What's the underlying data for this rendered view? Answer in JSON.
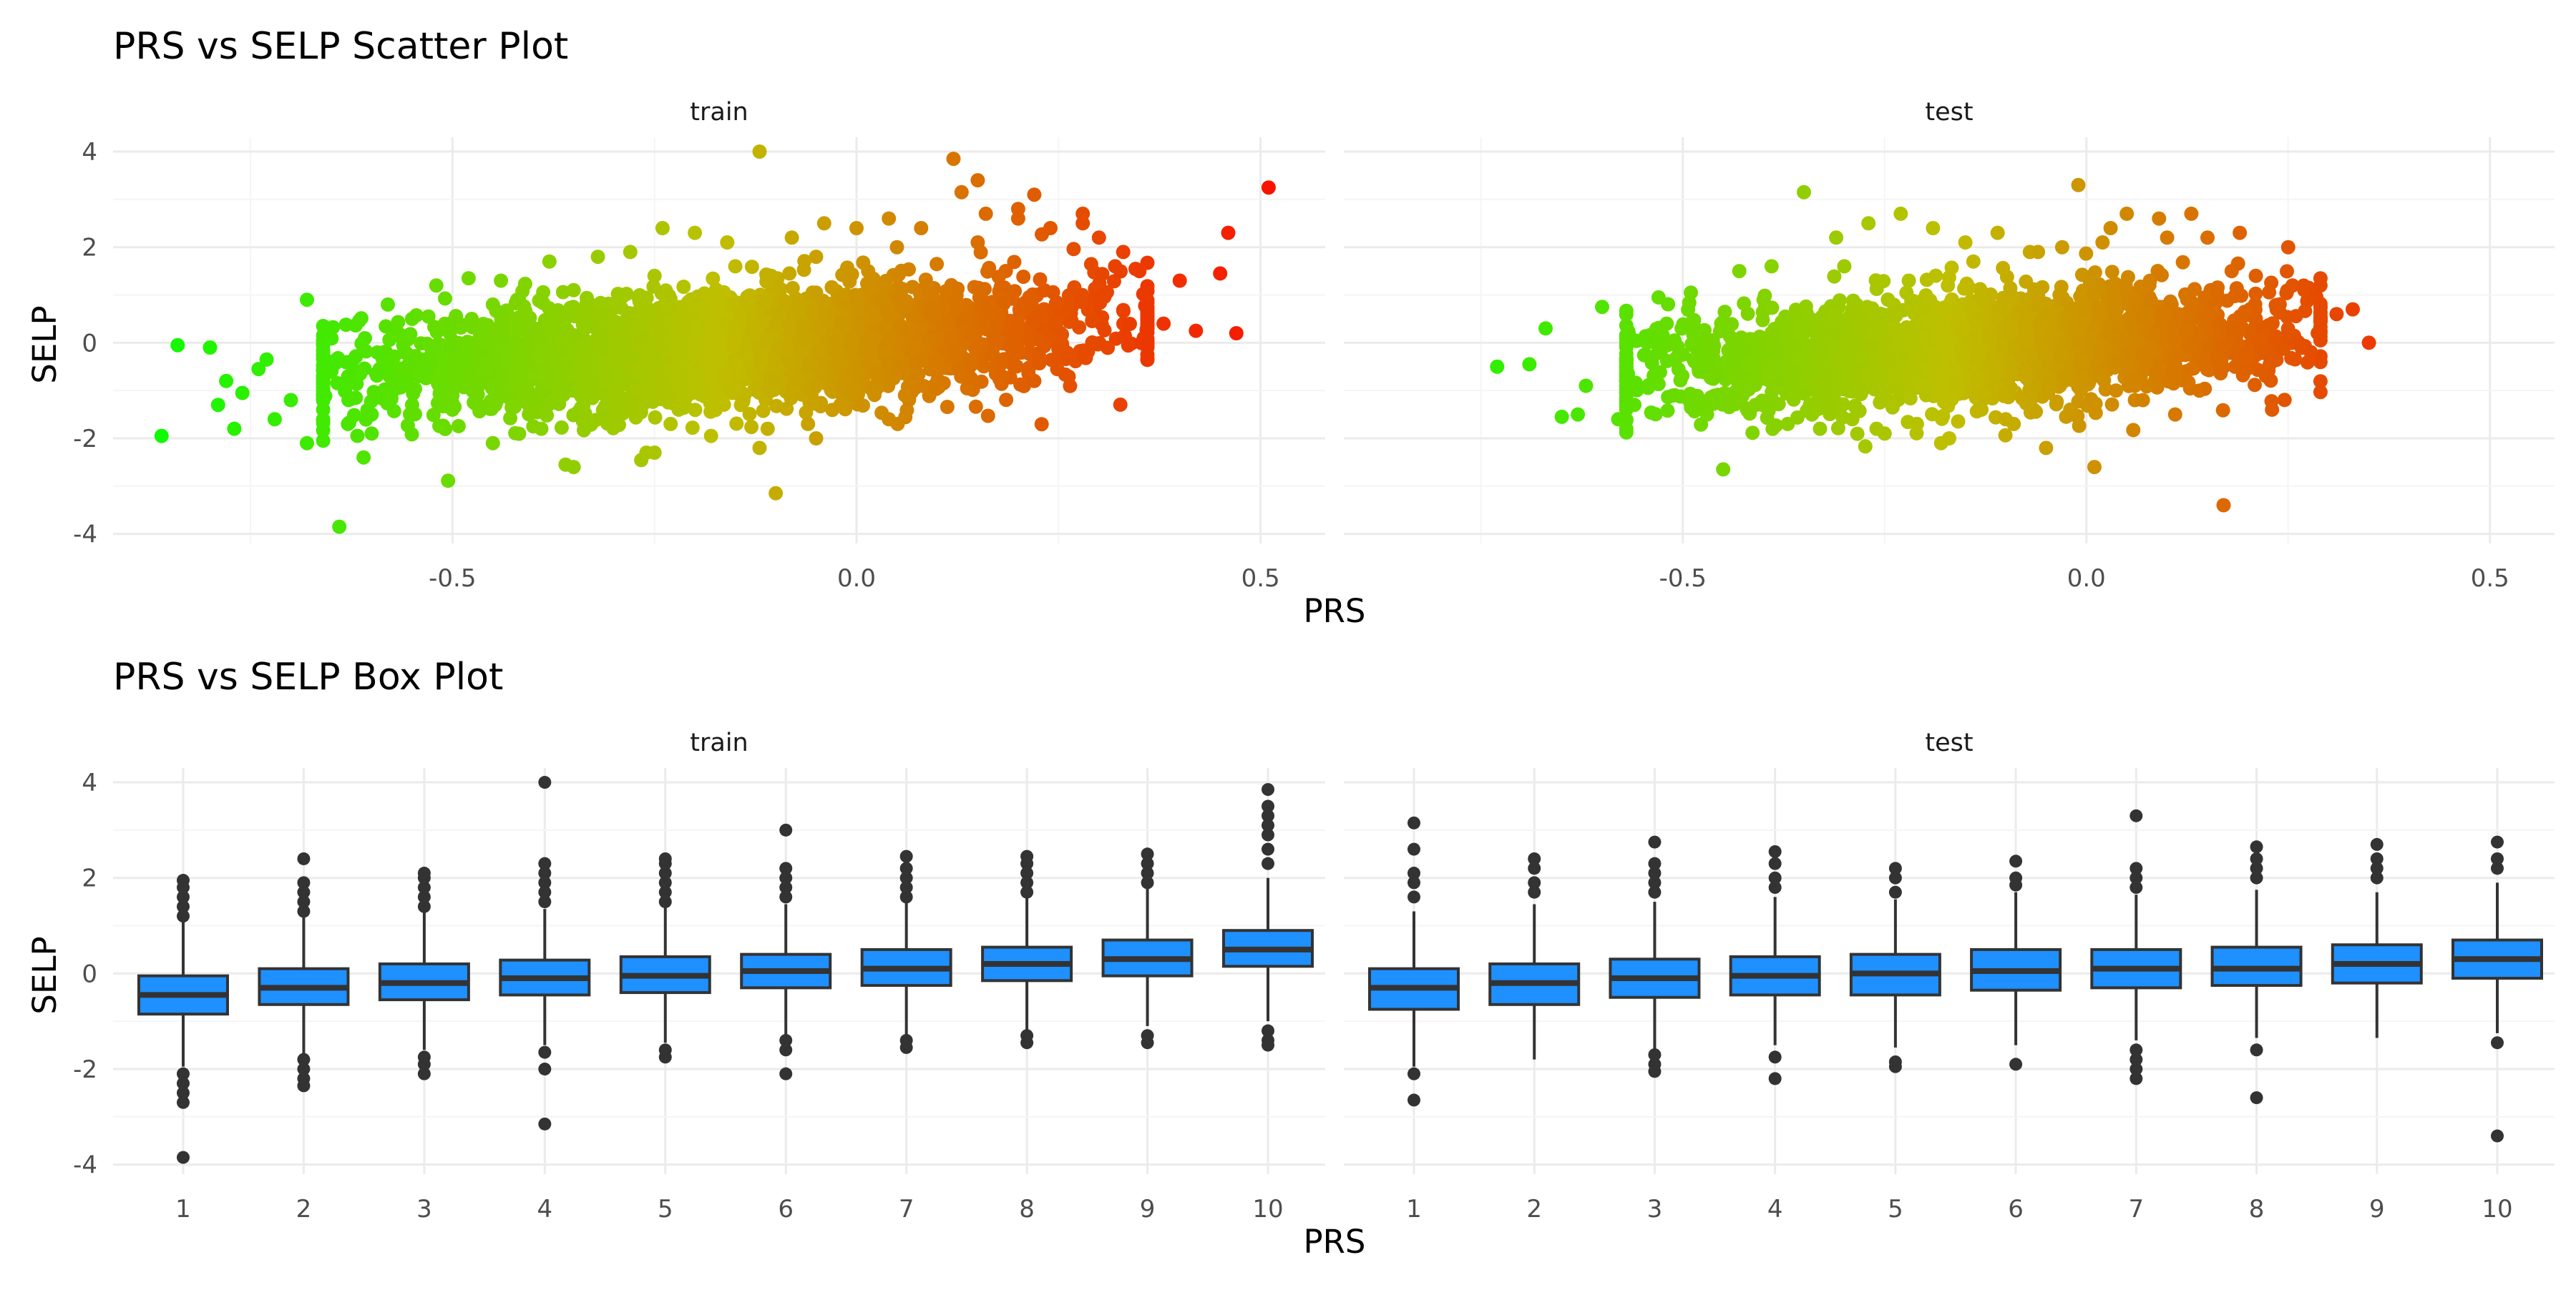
{
  "palette": {
    "background": "#ffffff",
    "grid_major": "#ebebeb",
    "grid_minor": "#f5f5f5",
    "box_fill": "#1e90ff",
    "box_line": "#333333",
    "outlier": "#333333",
    "gradient_low": "#00ff00",
    "gradient_high": "#ff0000"
  },
  "chart_data": [
    {
      "type": "scatter",
      "title": "PRS vs SELP Scatter Plot",
      "xlabel": "PRS",
      "ylabel": "SELP",
      "facets": [
        "train",
        "test"
      ],
      "xlim": [
        -0.92,
        0.58
      ],
      "ylim": [
        -4.2,
        4.3
      ],
      "xticks": [
        -0.5,
        0.0,
        0.5
      ],
      "xtick_labels": [
        "-0.5",
        "0.0",
        "0.5"
      ],
      "yticks": [
        -4,
        -2,
        0,
        2,
        4
      ],
      "ytick_labels": [
        "-4",
        "-2",
        "0",
        "2",
        "4"
      ],
      "color_encoding": "PRS (green at low, red at high)",
      "grid": true,
      "legend": "none",
      "series": [
        {
          "facet": "train",
          "x": [
            -0.86,
            -0.84,
            -0.8,
            -0.79,
            -0.78,
            -0.77,
            -0.76,
            -0.74,
            -0.72,
            -0.7,
            -0.68,
            -0.66,
            -0.64,
            -0.62,
            -0.6,
            -0.58,
            -0.56,
            -0.55,
            -0.52,
            -0.5,
            -0.48,
            -0.46,
            -0.44,
            -0.42,
            -0.4,
            -0.38,
            -0.36,
            -0.34,
            -0.32,
            -0.3,
            -0.28,
            -0.26,
            -0.24,
            -0.22,
            -0.2,
            -0.18,
            -0.16,
            -0.14,
            -0.12,
            -0.1,
            -0.08,
            -0.06,
            -0.04,
            -0.02,
            0.0,
            0.02,
            0.04,
            0.06,
            0.08,
            0.1,
            0.12,
            0.14,
            0.16,
            0.18,
            0.2,
            0.22,
            0.24,
            0.26,
            0.28,
            0.3,
            0.32,
            0.35,
            0.38,
            0.4,
            0.42,
            0.45,
            0.46,
            0.47,
            0.51,
            -0.73,
            -0.68,
            -0.66,
            -0.61,
            -0.55,
            -0.45,
            -0.39,
            -0.35,
            -0.25,
            -0.23,
            -0.12,
            -0.11,
            -0.05,
            0.04,
            0.13,
            0.15,
            0.2,
            0.22,
            0.28,
            -0.6,
            -0.5,
            -0.4,
            -0.3,
            -0.2,
            -0.1,
            0.0,
            0.1,
            0.2,
            0.25,
            -0.55,
            -0.45,
            -0.35,
            -0.25,
            -0.15,
            -0.05,
            0.05,
            0.15,
            0.3,
            0.33
          ],
          "y": [
            -1.95,
            -0.05,
            -0.1,
            -1.3,
            -0.8,
            -1.8,
            -1.05,
            -0.55,
            -1.6,
            -1.2,
            0.9,
            -1.4,
            -3.85,
            -0.3,
            -1.9,
            0.8,
            -0.2,
            -1.5,
            1.2,
            -1.1,
            1.35,
            -0.6,
            1.3,
            0.9,
            -1.75,
            1.7,
            -2.55,
            0.5,
            1.8,
            -1.6,
            1.9,
            -2.3,
            2.4,
            -1.4,
            2.3,
            -1.95,
            2.1,
            -1.2,
            4.0,
            -3.15,
            2.2,
            -1.7,
            2.5,
            -1.3,
            2.4,
            -1.0,
            2.6,
            -1.1,
            2.4,
            -0.9,
            3.85,
            -0.5,
            2.7,
            -0.7,
            2.6,
            -0.8,
            2.4,
            -0.2,
            2.5,
            0.9,
            1.6,
            1.5,
            0.4,
            1.3,
            0.25,
            1.45,
            2.3,
            0.2,
            3.25,
            -0.35,
            -2.1,
            -2.05,
            -2.4,
            -1.3,
            -2.1,
            -1.8,
            -2.6,
            -2.3,
            -1.7,
            -2.2,
            -1.8,
            -2.0,
            -1.6,
            3.15,
            3.4,
            2.8,
            3.1,
            2.7,
            -1.5,
            -1.4,
            -1.2,
            -1.1,
            -1.0,
            -0.8,
            -0.6,
            -0.4,
            -0.2,
            -0.1,
            0.5,
            0.8,
            1.1,
            1.4,
            1.6,
            1.8,
            2.0,
            2.1,
            2.2,
            1.9
          ]
        },
        {
          "facet": "test",
          "x": [
            -0.73,
            -0.69,
            -0.67,
            -0.65,
            -0.63,
            -0.6,
            -0.58,
            -0.56,
            -0.53,
            -0.51,
            -0.49,
            -0.47,
            -0.45,
            -0.43,
            -0.41,
            -0.39,
            -0.37,
            -0.35,
            -0.33,
            -0.31,
            -0.29,
            -0.27,
            -0.25,
            -0.23,
            -0.21,
            -0.19,
            -0.17,
            -0.15,
            -0.13,
            -0.11,
            -0.09,
            -0.07,
            -0.05,
            -0.03,
            -0.01,
            0.01,
            0.03,
            0.05,
            0.07,
            0.09,
            0.11,
            0.13,
            0.15,
            0.17,
            0.19,
            0.21,
            0.23,
            0.25,
            0.27,
            0.29,
            0.31,
            0.33,
            0.35,
            -0.62,
            -0.57,
            -0.52,
            -0.48,
            -0.44,
            -0.4,
            -0.34,
            -0.3,
            -0.26,
            -0.22,
            -0.18,
            -0.14,
            -0.1,
            -0.06,
            -0.02,
            0.02,
            0.06,
            0.1,
            0.14,
            0.18,
            0.22
          ],
          "y": [
            -0.5,
            -0.45,
            0.3,
            -1.55,
            -1.5,
            0.75,
            -1.6,
            -1.3,
            0.95,
            -1.1,
            1.05,
            -1.5,
            -2.65,
            1.5,
            -1.3,
            1.6,
            -1.7,
            3.15,
            -1.8,
            2.2,
            -1.6,
            2.5,
            -1.9,
            2.7,
            -1.7,
            2.4,
            -2.0,
            2.1,
            -1.4,
            2.3,
            -1.7,
            1.9,
            -2.2,
            2.0,
            3.3,
            -2.6,
            2.4,
            2.7,
            -1.2,
            2.6,
            -1.5,
            2.7,
            2.2,
            -3.4,
            2.3,
            1.4,
            -1.4,
            2.0,
            1.1,
            1.2,
            0.6,
            0.7,
            0.0,
            -0.9,
            -1.2,
            0.4,
            -1.3,
            -1.1,
            0.9,
            -1.5,
            1.6,
            -1.8,
            1.3,
            -2.1,
            1.7,
            -1.6,
            1.9,
            -1.4,
            2.1,
            -0.9,
            2.2,
            -1.0,
            1.5,
            -0.6
          ]
        }
      ],
      "point_clouds": [
        {
          "facet": "train",
          "x_range": [
            -0.66,
            0.36
          ],
          "slope": 1.0,
          "intercept": 0.05,
          "sd": 0.58
        },
        {
          "facet": "test",
          "x_range": [
            -0.57,
            0.29
          ],
          "slope": 1.0,
          "intercept": 0.05,
          "sd": 0.55
        }
      ]
    },
    {
      "type": "box",
      "title": "PRS vs SELP Box Plot",
      "xlabel": "PRS",
      "ylabel": "SELP",
      "facets": [
        "train",
        "test"
      ],
      "categories": [
        "1",
        "2",
        "3",
        "4",
        "5",
        "6",
        "7",
        "8",
        "9",
        "10"
      ],
      "ylim": [
        -4.2,
        4.3
      ],
      "yticks": [
        -4,
        -2,
        0,
        2,
        4
      ],
      "ytick_labels": [
        "-4",
        "-2",
        "0",
        "2",
        "4"
      ],
      "grid": true,
      "legend": "none",
      "series": [
        {
          "facet": "train",
          "q1": [
            -0.85,
            -0.65,
            -0.55,
            -0.45,
            -0.4,
            -0.3,
            -0.25,
            -0.15,
            -0.05,
            0.15
          ],
          "median": [
            -0.45,
            -0.3,
            -0.2,
            -0.1,
            -0.05,
            0.05,
            0.1,
            0.2,
            0.3,
            0.5
          ],
          "q3": [
            -0.05,
            0.1,
            0.2,
            0.28,
            0.35,
            0.4,
            0.5,
            0.55,
            0.7,
            0.9
          ],
          "whisker_low": [
            -1.95,
            -1.75,
            -1.6,
            -1.5,
            -1.45,
            -1.35,
            -1.3,
            -1.2,
            -1.1,
            -1.0
          ],
          "whisker_high": [
            1.1,
            1.2,
            1.3,
            1.35,
            1.4,
            1.45,
            1.55,
            1.6,
            1.8,
            2.0
          ],
          "outliers": [
            [
              1.2,
              1.4,
              1.6,
              1.8,
              1.95,
              -2.1,
              -2.3,
              -2.5,
              -2.7,
              -3.85
            ],
            [
              2.4,
              1.3,
              1.5,
              1.7,
              1.9,
              -1.8,
              -2.0,
              -2.2,
              -2.35
            ],
            [
              1.4,
              1.6,
              1.8,
              2.0,
              2.1,
              -1.75,
              -1.9,
              -2.1
            ],
            [
              4.0,
              2.3,
              2.1,
              1.9,
              1.5,
              1.7,
              -1.65,
              -2.0,
              -3.15
            ],
            [
              1.5,
              1.7,
              1.9,
              2.1,
              2.3,
              2.4,
              -1.6,
              -1.75
            ],
            [
              3.0,
              2.2,
              2.0,
              1.8,
              1.6,
              -1.4,
              -1.6,
              -2.1
            ],
            [
              1.6,
              1.8,
              2.0,
              2.2,
              2.45,
              -1.4,
              -1.55
            ],
            [
              1.7,
              1.9,
              2.1,
              2.3,
              2.45,
              -1.3,
              -1.45
            ],
            [
              1.9,
              2.1,
              2.3,
              2.5,
              -1.3,
              -1.45
            ],
            [
              2.3,
              2.6,
              2.9,
              3.1,
              3.3,
              3.5,
              3.85,
              -1.2,
              -1.4,
              -1.5
            ]
          ]
        },
        {
          "facet": "test",
          "q1": [
            -0.75,
            -0.65,
            -0.5,
            -0.45,
            -0.45,
            -0.35,
            -0.3,
            -0.25,
            -0.2,
            -0.1
          ],
          "median": [
            -0.3,
            -0.2,
            -0.1,
            -0.05,
            0.0,
            0.05,
            0.1,
            0.1,
            0.2,
            0.3
          ],
          "q3": [
            0.1,
            0.2,
            0.3,
            0.35,
            0.4,
            0.5,
            0.5,
            0.55,
            0.6,
            0.7
          ],
          "whisker_low": [
            -1.95,
            -1.8,
            -1.6,
            -1.5,
            -1.55,
            -1.5,
            -1.4,
            -1.35,
            -1.35,
            -1.25
          ],
          "whisker_high": [
            1.3,
            1.45,
            1.5,
            1.6,
            1.55,
            1.7,
            1.65,
            1.75,
            1.7,
            1.9
          ],
          "outliers": [
            [
              3.15,
              2.6,
              2.1,
              1.9,
              1.6,
              -2.1,
              -2.65
            ],
            [
              2.4,
              2.2,
              1.9,
              1.7
            ],
            [
              2.75,
              2.3,
              2.1,
              1.9,
              1.7,
              -1.7,
              -1.9,
              -2.05
            ],
            [
              2.55,
              2.3,
              2.0,
              1.8,
              -1.75,
              -2.2
            ],
            [
              2.2,
              2.0,
              1.7,
              -1.85,
              -1.95
            ],
            [
              2.35,
              2.0,
              1.85,
              -1.9
            ],
            [
              3.3,
              2.2,
              2.0,
              1.8,
              -1.6,
              -1.8,
              -2.0,
              -2.2
            ],
            [
              2.65,
              2.4,
              2.2,
              2.0,
              -1.6,
              -2.6
            ],
            [
              2.7,
              2.4,
              2.2,
              2.0
            ],
            [
              2.75,
              2.4,
              2.2,
              -1.45,
              -3.4
            ]
          ]
        }
      ]
    }
  ]
}
